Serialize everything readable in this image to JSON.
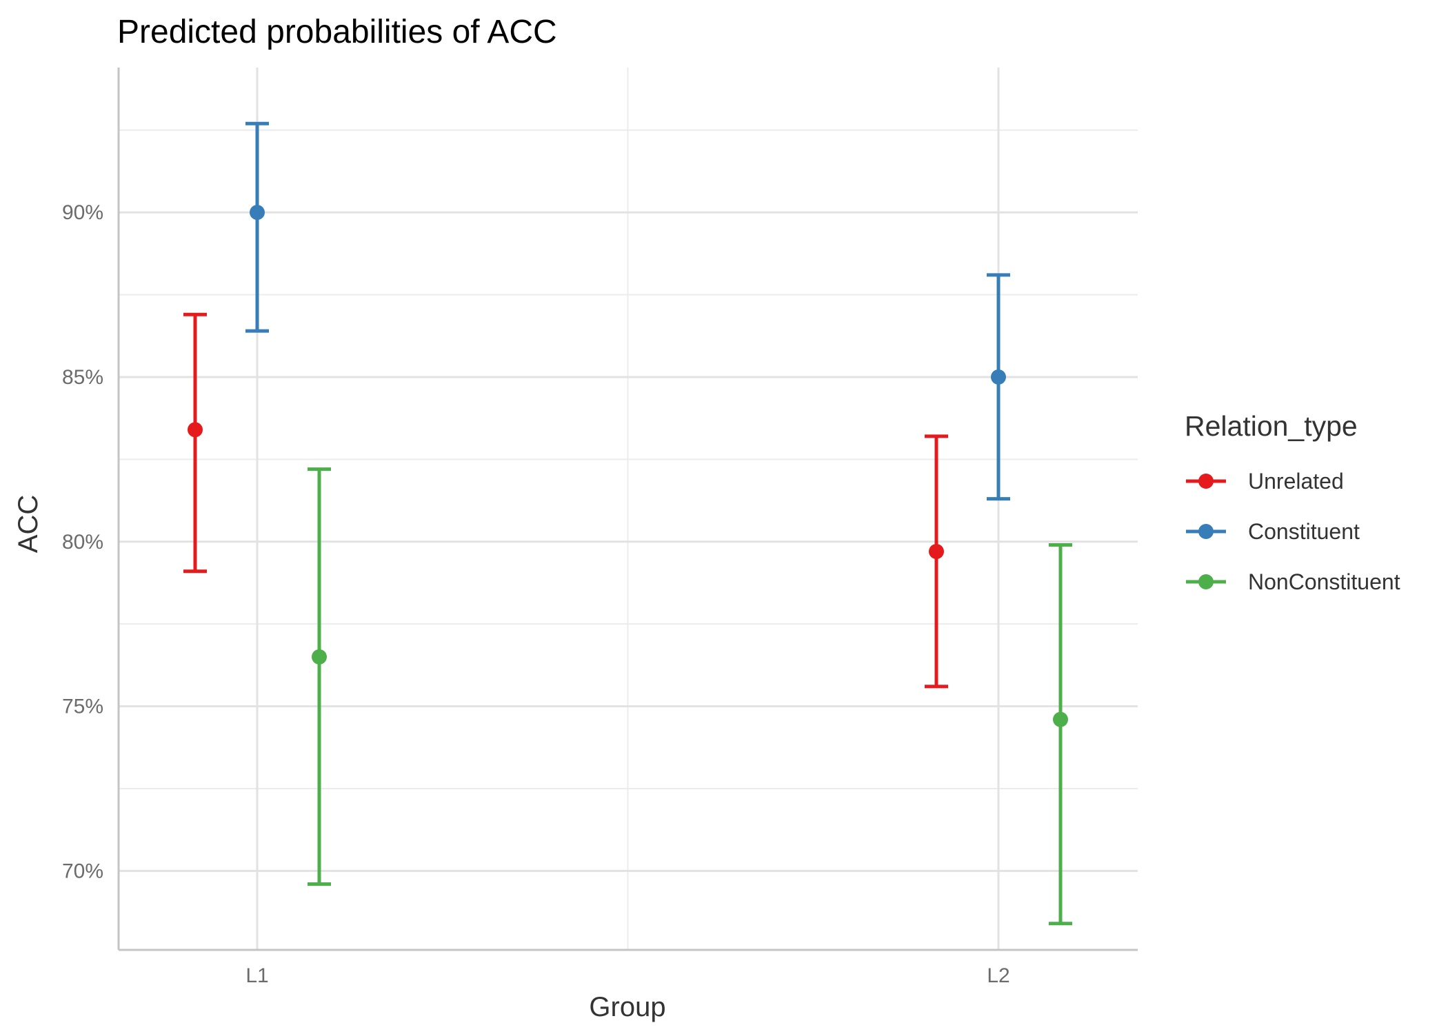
{
  "chart_data": {
    "type": "errorbar",
    "title": "Predicted probabilities of ACC",
    "xlabel": "Group",
    "ylabel": "ACC",
    "categories": [
      "L1",
      "L2"
    ],
    "ylim": [
      0.676,
      0.944
    ],
    "yticks": [
      0.7,
      0.75,
      0.8,
      0.85,
      0.9
    ],
    "ytick_labels": [
      "70%",
      "75%",
      "80%",
      "85%",
      "90%"
    ],
    "grid": true,
    "legend": {
      "title": "Relation_type",
      "position": "right"
    },
    "series": [
      {
        "name": "Unrelated",
        "color": "#e41a1c",
        "values": [
          0.834,
          0.797
        ],
        "lower": [
          0.791,
          0.756
        ],
        "upper": [
          0.869,
          0.832
        ]
      },
      {
        "name": "Constituent",
        "color": "#377eb8",
        "values": [
          0.9,
          0.85
        ],
        "lower": [
          0.864,
          0.813
        ],
        "upper": [
          0.927,
          0.881
        ]
      },
      {
        "name": "NonConstituent",
        "color": "#4daf4a",
        "values": [
          0.765,
          0.746
        ],
        "lower": [
          0.696,
          0.684
        ],
        "upper": [
          0.822,
          0.799
        ]
      }
    ]
  }
}
